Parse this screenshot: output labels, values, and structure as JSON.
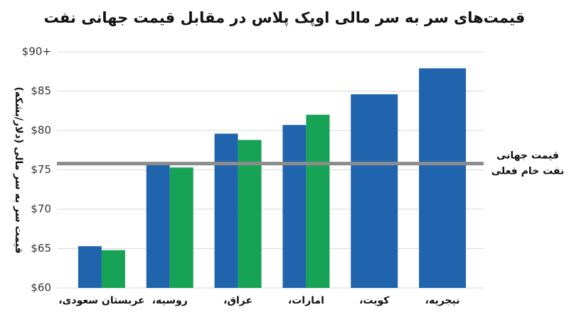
{
  "chart_data": {
    "type": "bar",
    "title": "قیمت‌های سر به سر مالی اوپک پلاس در مقابل قیمت جهانی نفت",
    "y_label": "قیمت سر به سر مالی (دلار/بشکه)",
    "categories": [
      "عربستان سعودی،",
      "روسیه،",
      "عراق،",
      "امارات،",
      "کویت،",
      "نیجریه،"
    ],
    "series": [
      {
        "color": "#1f64ad",
        "values": [
          65.3,
          75.8,
          79.6,
          80.7,
          84.6,
          87.9
        ]
      },
      {
        "color": "#17a355",
        "values": [
          64.8,
          75.3,
          78.8,
          82.0,
          null,
          null
        ]
      }
    ],
    "ylim": [
      60,
      90
    ],
    "yticks": [
      {
        "value": 60,
        "label": "$60"
      },
      {
        "value": 65,
        "label": "$65"
      },
      {
        "value": 70,
        "label": "$70"
      },
      {
        "value": 75,
        "label": "$75"
      },
      {
        "value": 80,
        "label": "$80"
      },
      {
        "value": 85,
        "label": "$85"
      },
      {
        "value": 90,
        "label": "$90+"
      }
    ],
    "grid": true,
    "reference_line": {
      "value": 75.8,
      "color": "#8c8c8c",
      "label": [
        "قیمت جهانی",
        "نفت خام فعلی"
      ]
    }
  }
}
